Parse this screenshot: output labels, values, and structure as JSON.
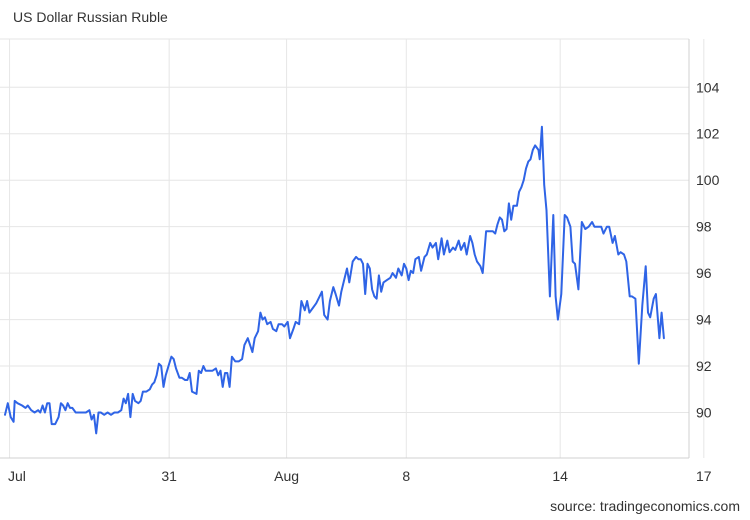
{
  "source": "source: tradingeconomics.com",
  "chart_data": {
    "type": "line",
    "title": "US Dollar Russian Ruble",
    "xlabel": "",
    "ylabel": "",
    "ylim": [
      88.2,
      105.9
    ],
    "y_ticks": [
      "90",
      "92",
      "94",
      "96",
      "98",
      "100",
      "102",
      "104"
    ],
    "x_ticks": [
      {
        "label": "Jul",
        "x": 0.4
      },
      {
        "label": "31",
        "x": 14.4
      },
      {
        "label": "Aug",
        "x": 24.7
      },
      {
        "label": "8",
        "x": 35.2
      },
      {
        "label": "14",
        "x": 48.7
      },
      {
        "label": "17",
        "x": 61.3
      }
    ],
    "grid": true,
    "line_color": "#2f64e6",
    "grid_color": "#e6e6e6",
    "series": [
      {
        "name": "",
        "points": [
          [
            0.0,
            89.9
          ],
          [
            0.25,
            90.4
          ],
          [
            0.5,
            89.8
          ],
          [
            0.75,
            89.6
          ],
          [
            0.85,
            90.5
          ],
          [
            1.1,
            90.4
          ],
          [
            1.5,
            90.3
          ],
          [
            1.8,
            90.2
          ],
          [
            2.0,
            90.3
          ],
          [
            2.3,
            90.1
          ],
          [
            2.6,
            90.0
          ],
          [
            2.9,
            90.1
          ],
          [
            3.1,
            90.0
          ],
          [
            3.3,
            90.3
          ],
          [
            3.5,
            90.0
          ],
          [
            3.7,
            90.4
          ],
          [
            3.9,
            90.4
          ],
          [
            4.1,
            89.5
          ],
          [
            4.4,
            89.5
          ],
          [
            4.7,
            89.8
          ],
          [
            4.9,
            90.4
          ],
          [
            5.1,
            90.3
          ],
          [
            5.3,
            90.1
          ],
          [
            5.5,
            90.4
          ],
          [
            5.7,
            90.2
          ],
          [
            5.9,
            90.2
          ],
          [
            6.2,
            90.0
          ],
          [
            6.5,
            90.0
          ],
          [
            6.8,
            90.0
          ],
          [
            7.1,
            90.0
          ],
          [
            7.4,
            90.1
          ],
          [
            7.6,
            89.7
          ],
          [
            7.8,
            89.9
          ],
          [
            8.0,
            89.1
          ],
          [
            8.2,
            90.0
          ],
          [
            8.4,
            90.0
          ],
          [
            8.7,
            89.9
          ],
          [
            9.0,
            90.0
          ],
          [
            9.3,
            89.9
          ],
          [
            9.6,
            90.0
          ],
          [
            9.9,
            90.0
          ],
          [
            10.2,
            90.1
          ],
          [
            10.4,
            90.6
          ],
          [
            10.6,
            90.4
          ],
          [
            10.8,
            90.8
          ],
          [
            11.0,
            89.8
          ],
          [
            11.2,
            90.8
          ],
          [
            11.4,
            90.5
          ],
          [
            11.7,
            90.4
          ],
          [
            11.9,
            90.5
          ],
          [
            12.1,
            90.9
          ],
          [
            12.4,
            90.9
          ],
          [
            12.7,
            91.0
          ],
          [
            12.9,
            91.2
          ],
          [
            13.1,
            91.3
          ],
          [
            13.3,
            91.6
          ],
          [
            13.5,
            92.1
          ],
          [
            13.7,
            92.0
          ],
          [
            13.9,
            91.1
          ],
          [
            14.1,
            91.6
          ],
          [
            14.4,
            92.1
          ],
          [
            14.6,
            92.4
          ],
          [
            14.8,
            92.3
          ],
          [
            15.0,
            91.9
          ],
          [
            15.3,
            91.5
          ],
          [
            15.5,
            91.5
          ],
          [
            15.8,
            91.4
          ],
          [
            16.0,
            91.4
          ],
          [
            16.2,
            91.7
          ],
          [
            16.4,
            90.9
          ],
          [
            16.8,
            90.8
          ],
          [
            17.0,
            91.8
          ],
          [
            17.2,
            91.7
          ],
          [
            17.4,
            92.0
          ],
          [
            17.6,
            91.8
          ],
          [
            17.9,
            91.8
          ],
          [
            18.2,
            91.8
          ],
          [
            18.5,
            91.9
          ],
          [
            18.7,
            91.6
          ],
          [
            18.9,
            91.8
          ],
          [
            19.1,
            91.1
          ],
          [
            19.3,
            91.7
          ],
          [
            19.5,
            91.7
          ],
          [
            19.7,
            91.1
          ],
          [
            19.9,
            92.4
          ],
          [
            20.2,
            92.2
          ],
          [
            20.5,
            92.2
          ],
          [
            20.8,
            92.3
          ],
          [
            21.0,
            92.9
          ],
          [
            21.3,
            93.2
          ],
          [
            21.5,
            92.9
          ],
          [
            21.7,
            92.6
          ],
          [
            21.9,
            93.2
          ],
          [
            22.2,
            93.5
          ],
          [
            22.4,
            94.3
          ],
          [
            22.6,
            94.0
          ],
          [
            22.8,
            94.1
          ],
          [
            23.0,
            93.8
          ],
          [
            23.3,
            93.9
          ],
          [
            23.5,
            93.6
          ],
          [
            23.8,
            93.5
          ],
          [
            24.0,
            93.8
          ],
          [
            24.3,
            93.8
          ],
          [
            24.5,
            93.7
          ],
          [
            24.8,
            93.9
          ],
          [
            25.0,
            93.2
          ],
          [
            25.3,
            93.6
          ],
          [
            25.5,
            93.9
          ],
          [
            25.8,
            93.8
          ],
          [
            26.0,
            94.8
          ],
          [
            26.3,
            94.4
          ],
          [
            26.5,
            94.8
          ],
          [
            26.7,
            94.3
          ],
          [
            27.0,
            94.5
          ],
          [
            27.3,
            94.7
          ],
          [
            27.5,
            94.9
          ],
          [
            27.8,
            95.2
          ],
          [
            28.0,
            94.2
          ],
          [
            28.3,
            94.0
          ],
          [
            28.5,
            94.8
          ],
          [
            28.8,
            95.4
          ],
          [
            29.0,
            95.1
          ],
          [
            29.3,
            94.6
          ],
          [
            29.5,
            95.2
          ],
          [
            29.8,
            95.8
          ],
          [
            30.0,
            96.2
          ],
          [
            30.2,
            95.6
          ],
          [
            30.5,
            96.5
          ],
          [
            30.8,
            96.7
          ],
          [
            31.0,
            96.6
          ],
          [
            31.2,
            96.6
          ],
          [
            31.4,
            96.4
          ],
          [
            31.6,
            95.1
          ],
          [
            31.8,
            96.4
          ],
          [
            32.0,
            96.2
          ],
          [
            32.2,
            95.3
          ],
          [
            32.4,
            95.0
          ],
          [
            32.6,
            94.9
          ],
          [
            32.8,
            95.9
          ],
          [
            33.0,
            95.2
          ],
          [
            33.2,
            95.6
          ],
          [
            33.5,
            95.7
          ],
          [
            33.8,
            95.8
          ],
          [
            34.0,
            96.0
          ],
          [
            34.3,
            95.8
          ],
          [
            34.5,
            96.2
          ],
          [
            34.8,
            95.9
          ],
          [
            35.0,
            96.4
          ],
          [
            35.2,
            96.2
          ],
          [
            35.4,
            95.7
          ],
          [
            35.6,
            96.1
          ],
          [
            35.8,
            96.0
          ],
          [
            36.0,
            96.6
          ],
          [
            36.3,
            96.7
          ],
          [
            36.5,
            96.1
          ],
          [
            36.8,
            96.7
          ],
          [
            37.0,
            96.8
          ],
          [
            37.3,
            97.3
          ],
          [
            37.5,
            97.1
          ],
          [
            37.8,
            97.3
          ],
          [
            38.0,
            96.6
          ],
          [
            38.3,
            97.5
          ],
          [
            38.5,
            96.8
          ],
          [
            38.8,
            97.4
          ],
          [
            39.0,
            96.9
          ],
          [
            39.3,
            97.1
          ],
          [
            39.5,
            97.0
          ],
          [
            39.8,
            97.4
          ],
          [
            40.0,
            97.0
          ],
          [
            40.3,
            97.3
          ],
          [
            40.5,
            96.8
          ],
          [
            40.8,
            97.6
          ],
          [
            41.0,
            97.3
          ],
          [
            41.2,
            96.8
          ],
          [
            41.4,
            96.5
          ],
          [
            41.7,
            96.3
          ],
          [
            41.9,
            96.0
          ],
          [
            42.2,
            97.8
          ],
          [
            42.5,
            97.8
          ],
          [
            42.8,
            97.8
          ],
          [
            43.0,
            97.7
          ],
          [
            43.2,
            98.1
          ],
          [
            43.4,
            98.4
          ],
          [
            43.6,
            98.3
          ],
          [
            43.8,
            97.8
          ],
          [
            44.0,
            97.9
          ],
          [
            44.2,
            99.0
          ],
          [
            44.4,
            98.3
          ],
          [
            44.6,
            98.9
          ],
          [
            44.9,
            98.9
          ],
          [
            45.1,
            99.5
          ],
          [
            45.3,
            99.7
          ],
          [
            45.5,
            100.0
          ],
          [
            45.7,
            100.5
          ],
          [
            45.9,
            100.8
          ],
          [
            46.1,
            100.9
          ],
          [
            46.3,
            101.3
          ],
          [
            46.5,
            101.5
          ],
          [
            46.8,
            101.3
          ],
          [
            46.9,
            100.9
          ],
          [
            47.1,
            102.3
          ],
          [
            47.3,
            99.8
          ],
          [
            47.5,
            98.7
          ],
          [
            47.8,
            95.0
          ],
          [
            48.1,
            98.5
          ],
          [
            48.3,
            95.0
          ],
          [
            48.5,
            94.0
          ],
          [
            48.8,
            95.1
          ],
          [
            49.1,
            98.5
          ],
          [
            49.3,
            98.4
          ],
          [
            49.6,
            98.0
          ],
          [
            49.8,
            96.5
          ],
          [
            50.0,
            96.4
          ],
          [
            50.3,
            95.3
          ],
          [
            50.6,
            98.2
          ],
          [
            50.9,
            97.9
          ],
          [
            51.2,
            98.0
          ],
          [
            51.5,
            98.2
          ],
          [
            51.7,
            98.0
          ],
          [
            52.0,
            98.0
          ],
          [
            52.3,
            98.0
          ],
          [
            52.5,
            97.7
          ],
          [
            52.8,
            98.0
          ],
          [
            53.0,
            98.0
          ],
          [
            53.3,
            97.3
          ],
          [
            53.5,
            97.6
          ],
          [
            53.8,
            96.8
          ],
          [
            54.0,
            96.9
          ],
          [
            54.3,
            96.8
          ],
          [
            54.5,
            96.5
          ],
          [
            54.8,
            95.0
          ],
          [
            55.0,
            95.0
          ],
          [
            55.3,
            94.9
          ],
          [
            55.6,
            92.1
          ],
          [
            55.9,
            94.6
          ],
          [
            56.2,
            96.3
          ],
          [
            56.4,
            94.3
          ],
          [
            56.6,
            94.1
          ],
          [
            56.9,
            94.9
          ],
          [
            57.1,
            95.1
          ],
          [
            57.4,
            93.2
          ],
          [
            57.6,
            94.3
          ],
          [
            57.8,
            93.2
          ]
        ]
      }
    ]
  }
}
